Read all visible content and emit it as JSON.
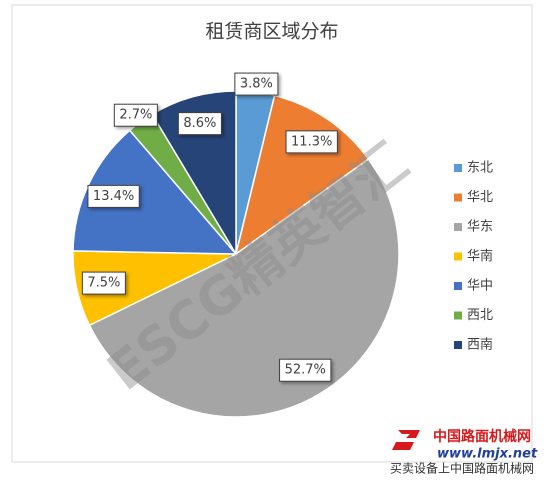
{
  "chart_data": {
    "type": "pie",
    "title": "租赁商区域分布",
    "categories": [
      "东北",
      "华北",
      "华东",
      "华南",
      "华中",
      "西北",
      "西南"
    ],
    "values": [
      3.8,
      11.3,
      52.7,
      7.5,
      13.4,
      2.7,
      8.6
    ],
    "value_labels": [
      "3.8%",
      "11.3%",
      "52.7%",
      "7.5%",
      "13.4%",
      "2.7%",
      "8.6%"
    ],
    "colors": [
      "#5b9bd5",
      "#ed7d31",
      "#a5a5a5",
      "#ffc000",
      "#4472c4",
      "#70ad47",
      "#264478"
    ],
    "legend": "right"
  },
  "watermark": "ESCG精英智汇",
  "logo": {
    "name": "中国路面机械网",
    "url": "www.lmjx.net",
    "slogan": "买卖设备上中国路面机械网"
  }
}
